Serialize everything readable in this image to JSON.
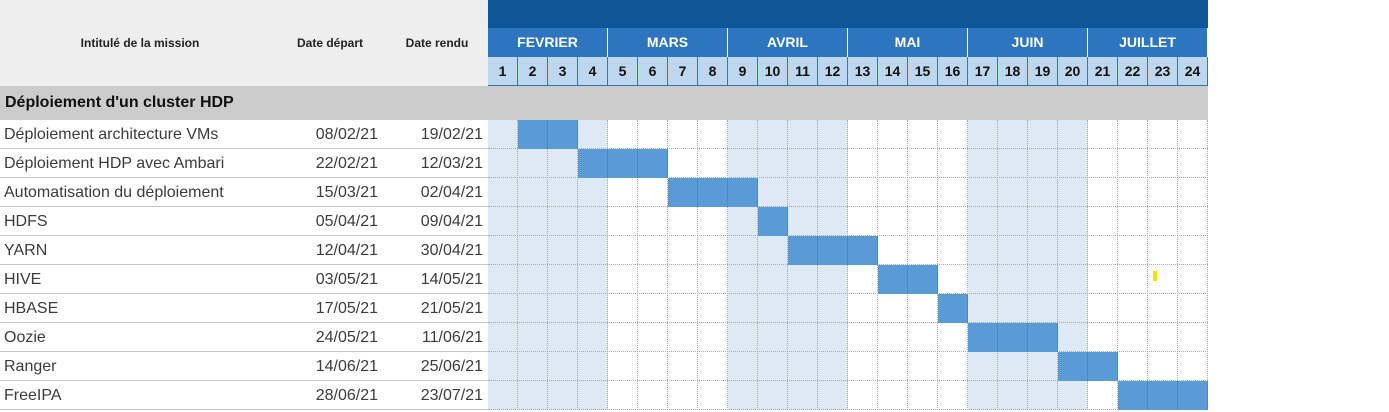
{
  "header": {
    "task_col": "Intitulé de la mission",
    "start_col": "Date départ",
    "end_col": "Date rendu"
  },
  "colors": {
    "topbar": "#0f5696",
    "month_header": "#2e75c0",
    "week_header": "#bcd7ee",
    "alt_month_shade": "#ddeaf6",
    "bar": "#5b9bd5",
    "section_bg": "#cccccc",
    "marker": "#f5e100"
  },
  "months": [
    {
      "label": "FEVRIER",
      "weeks": [
        1,
        2,
        3,
        4
      ],
      "shaded": true
    },
    {
      "label": "MARS",
      "weeks": [
        5,
        6,
        7,
        8
      ],
      "shaded": false
    },
    {
      "label": "AVRIL",
      "weeks": [
        9,
        10,
        11,
        12
      ],
      "shaded": true
    },
    {
      "label": "MAI",
      "weeks": [
        13,
        14,
        15,
        16
      ],
      "shaded": false
    },
    {
      "label": "JUIN",
      "weeks": [
        17,
        18,
        19,
        20
      ],
      "shaded": true
    },
    {
      "label": "JUILLET",
      "weeks": [
        21,
        22,
        23,
        24
      ],
      "shaded": false
    }
  ],
  "section": {
    "title": "Déploiement d'un cluster HDP"
  },
  "tasks": [
    {
      "name": "Déploiement architecture VMs",
      "start": "08/02/21",
      "end": "19/02/21",
      "first_week": 2,
      "last_week": 3
    },
    {
      "name": "Déploiement HDP avec Ambari",
      "start": "22/02/21",
      "end": "12/03/21",
      "first_week": 4,
      "last_week": 6
    },
    {
      "name": "Automatisation du déploiement",
      "start": "15/03/21",
      "end": "02/04/21",
      "first_week": 7,
      "last_week": 9
    },
    {
      "name": "HDFS",
      "start": "05/04/21",
      "end": "09/04/21",
      "first_week": 10,
      "last_week": 10
    },
    {
      "name": "YARN",
      "start": "12/04/21",
      "end": "30/04/21",
      "first_week": 11,
      "last_week": 13
    },
    {
      "name": "HIVE",
      "start": "03/05/21",
      "end": "14/05/21",
      "first_week": 14,
      "last_week": 15
    },
    {
      "name": "HBASE",
      "start": "17/05/21",
      "end": "21/05/21",
      "first_week": 16,
      "last_week": 16
    },
    {
      "name": "Oozie",
      "start": "24/05/21",
      "end": "11/06/21",
      "first_week": 17,
      "last_week": 19
    },
    {
      "name": "Ranger",
      "start": "14/06/21",
      "end": "25/06/21",
      "first_week": 20,
      "last_week": 21
    },
    {
      "name": "FreeIPA",
      "start": "28/06/21",
      "end": "23/07/21",
      "first_week": 22,
      "last_week": 24
    }
  ]
}
